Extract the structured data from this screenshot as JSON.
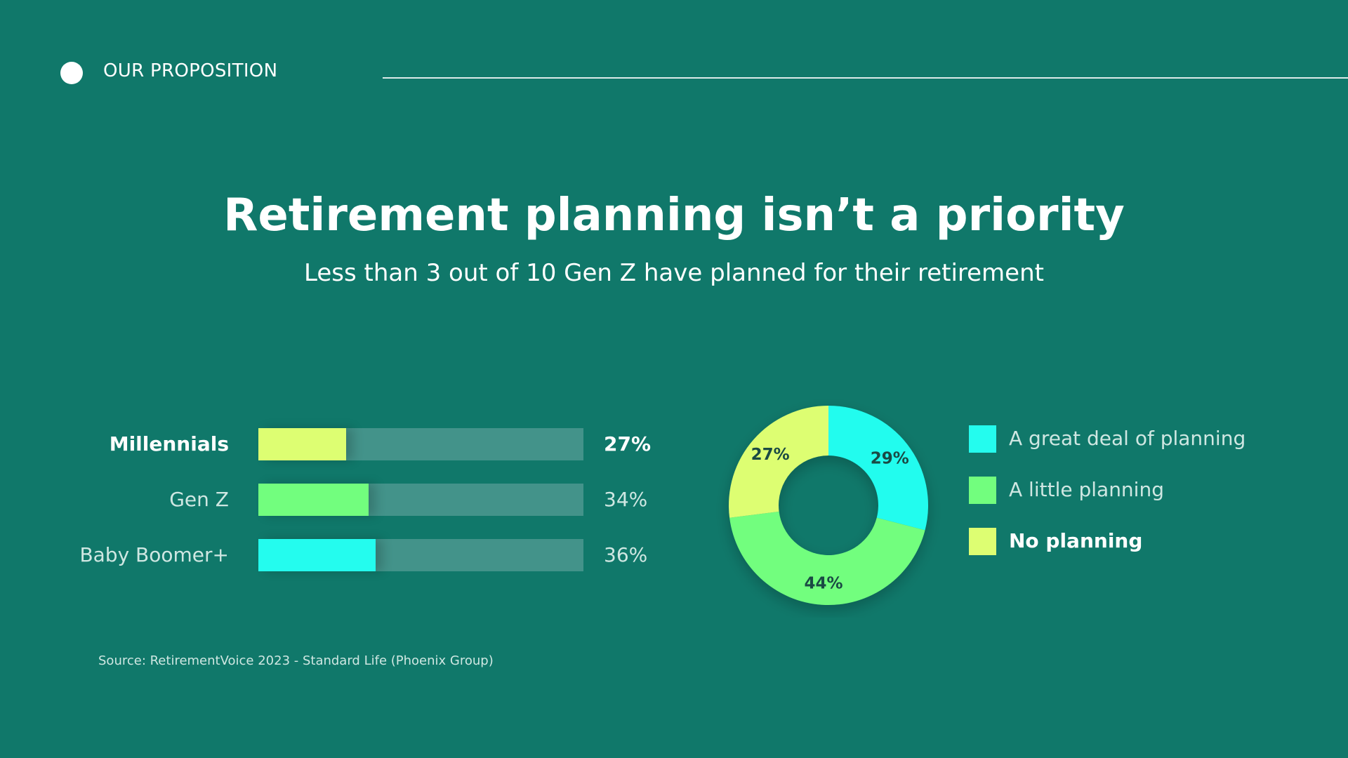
{
  "header": {
    "section_label": "OUR PROPOSITION"
  },
  "title": "Retirement planning isn’t a priority",
  "subtitle": "Less than 3 out of 10 Gen Z have planned for their retirement",
  "source": "Source: RetirementVoice 2023 - Standard Life (Phoenix Group)",
  "colors": {
    "background": "#10786a",
    "great_deal": "#24fcee",
    "little": "#72fe7e",
    "none": "#ddfe72",
    "track": "#43938a"
  },
  "chart_data": [
    {
      "type": "bar",
      "orientation": "horizontal",
      "categories": [
        "Millennials",
        "Gen Z",
        "Baby Boomer+"
      ],
      "values": [
        27,
        34,
        36
      ],
      "value_labels": [
        "27%",
        "34%",
        "36%"
      ],
      "bar_colors": [
        "#ddfe72",
        "#72fe7e",
        "#24fcee"
      ],
      "highlight": "Millennials",
      "xlim": [
        0,
        100
      ]
    },
    {
      "type": "pie",
      "variant": "donut",
      "labels": [
        "A great deal of planning",
        "A little planning",
        "No planning"
      ],
      "values": [
        29,
        44,
        27
      ],
      "value_labels": [
        "29%",
        "44%",
        "27%"
      ],
      "colors": [
        "#24fcee",
        "#72fe7e",
        "#ddfe72"
      ],
      "legend_position": "right",
      "highlight": "No planning"
    }
  ]
}
